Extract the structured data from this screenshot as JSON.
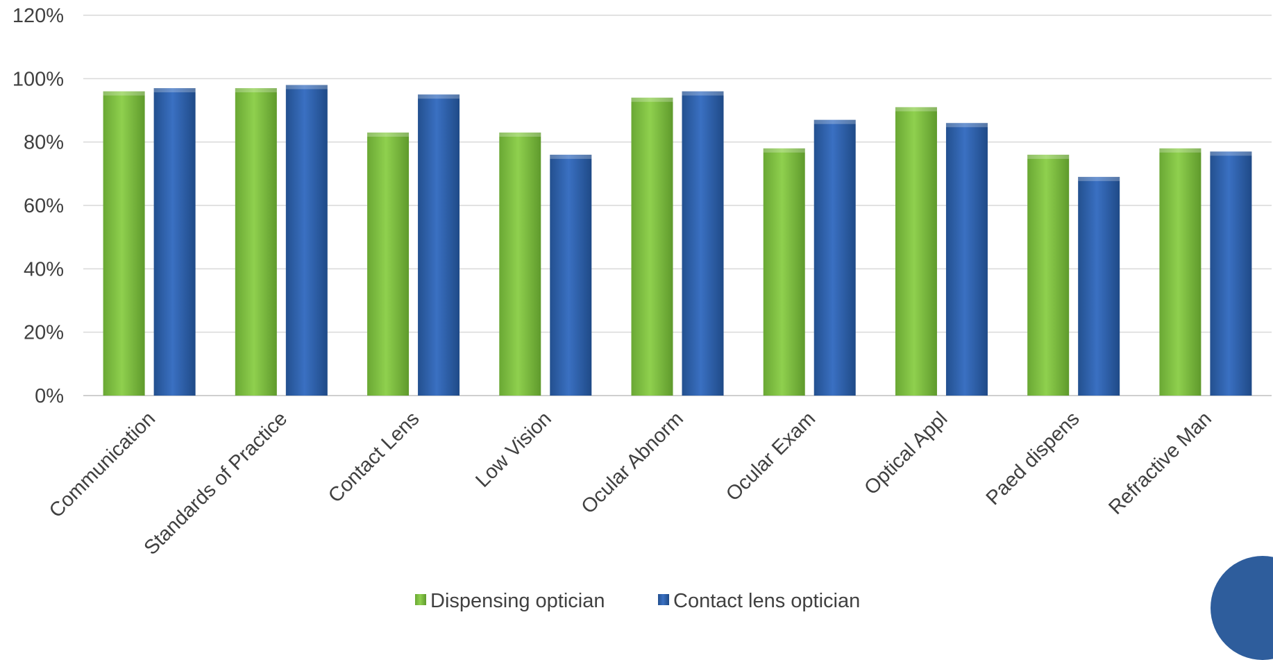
{
  "chart_data": {
    "type": "bar",
    "title": "",
    "xlabel": "",
    "ylabel": "",
    "ylim": [
      0,
      120
    ],
    "y_unit": "%",
    "y_ticks": [
      "0%",
      "20%",
      "40%",
      "60%",
      "80%",
      "100%",
      "120%"
    ],
    "grid": true,
    "legend_position": "bottom",
    "categories": [
      "Communication",
      "Standards of Practice",
      "Contact Lens",
      "Low Vision",
      "Ocular Abnorm",
      "Ocular Exam",
      "Optical Appl",
      "Paed dispens",
      "Refractive Man"
    ],
    "series": [
      {
        "name": "Dispensing optician",
        "color": "#7cc142",
        "values": [
          96,
          97,
          83,
          83,
          94,
          78,
          91,
          76,
          78
        ]
      },
      {
        "name": "Contact lens optician",
        "color": "#2e63b3",
        "values": [
          97,
          98,
          95,
          76,
          96,
          87,
          86,
          69,
          77
        ]
      }
    ]
  }
}
